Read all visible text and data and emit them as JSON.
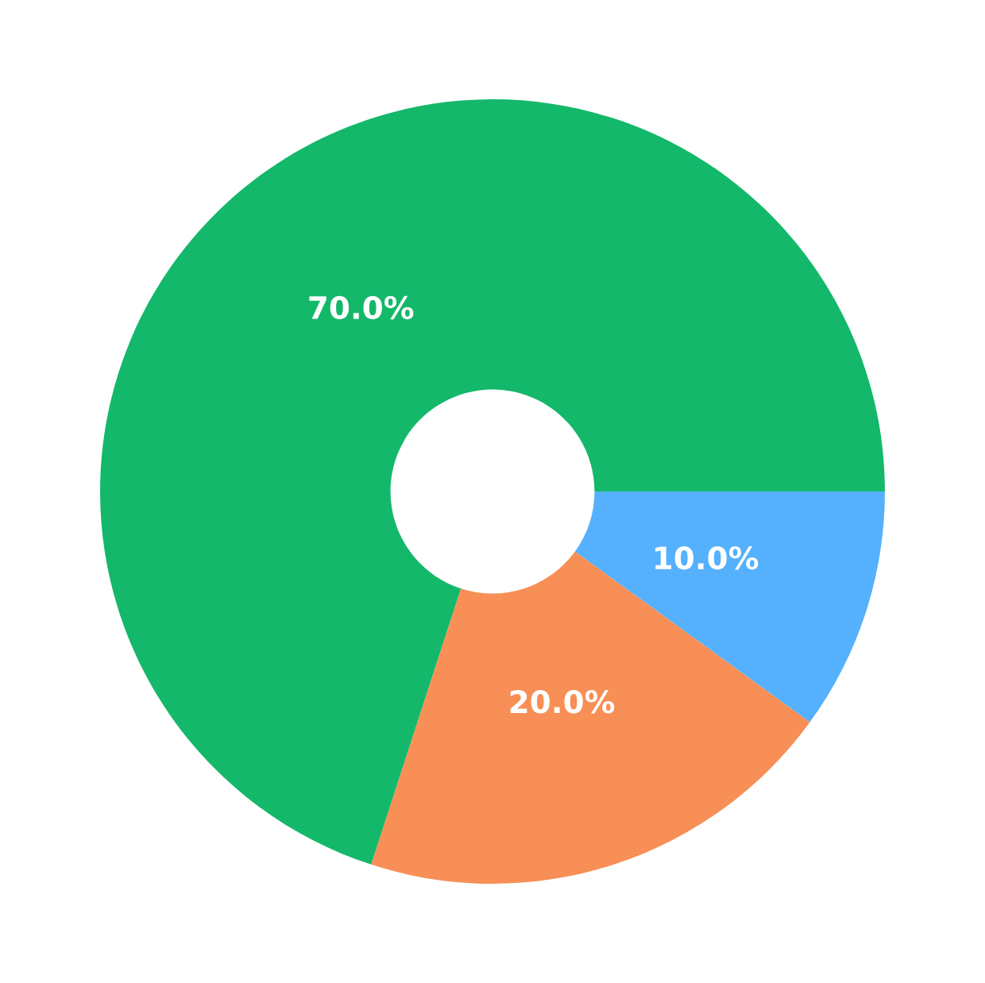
{
  "chart_data": {
    "type": "donut",
    "categories": [
      null,
      null,
      null
    ],
    "values": [
      70,
      20,
      10
    ],
    "value_labels": [
      "70.0%",
      "20.0%",
      "10.0%"
    ],
    "colors": [
      "#14b86a",
      "#f78f56",
      "#55b1fd"
    ]
  }
}
